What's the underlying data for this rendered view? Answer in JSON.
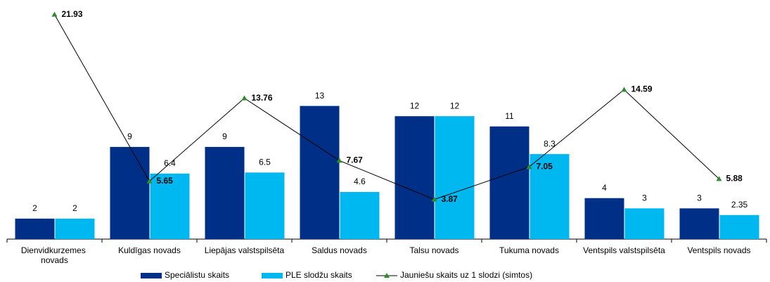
{
  "chart_data": {
    "type": "bar",
    "categories": [
      "Dienvidkurzemes novads",
      "Kuldīgas novads",
      "Liepājas valstspilsēta",
      "Saldus novads",
      "Talsu novads",
      "Tukuma novads",
      "Ventspils valstspilsēta",
      "Ventspils novads"
    ],
    "series": [
      {
        "name": "Speciālistu skaits",
        "type": "bar",
        "color": "#002f87",
        "values": [
          2,
          9,
          9,
          13,
          12,
          11,
          4,
          3
        ]
      },
      {
        "name": "PLE slodžu skaits",
        "type": "bar",
        "color": "#00b8f0",
        "values": [
          2,
          6.4,
          6.5,
          4.6,
          12,
          8.3,
          3,
          2.35
        ]
      },
      {
        "name": "Jauniešu skaits uz 1 slodzi (simtos)",
        "type": "line",
        "color": "#000000",
        "marker_color": "#2e8b2e",
        "values": [
          21.93,
          5.65,
          13.76,
          7.67,
          3.87,
          7.05,
          14.59,
          5.88
        ]
      }
    ],
    "ylim": [
      0,
      23
    ]
  }
}
